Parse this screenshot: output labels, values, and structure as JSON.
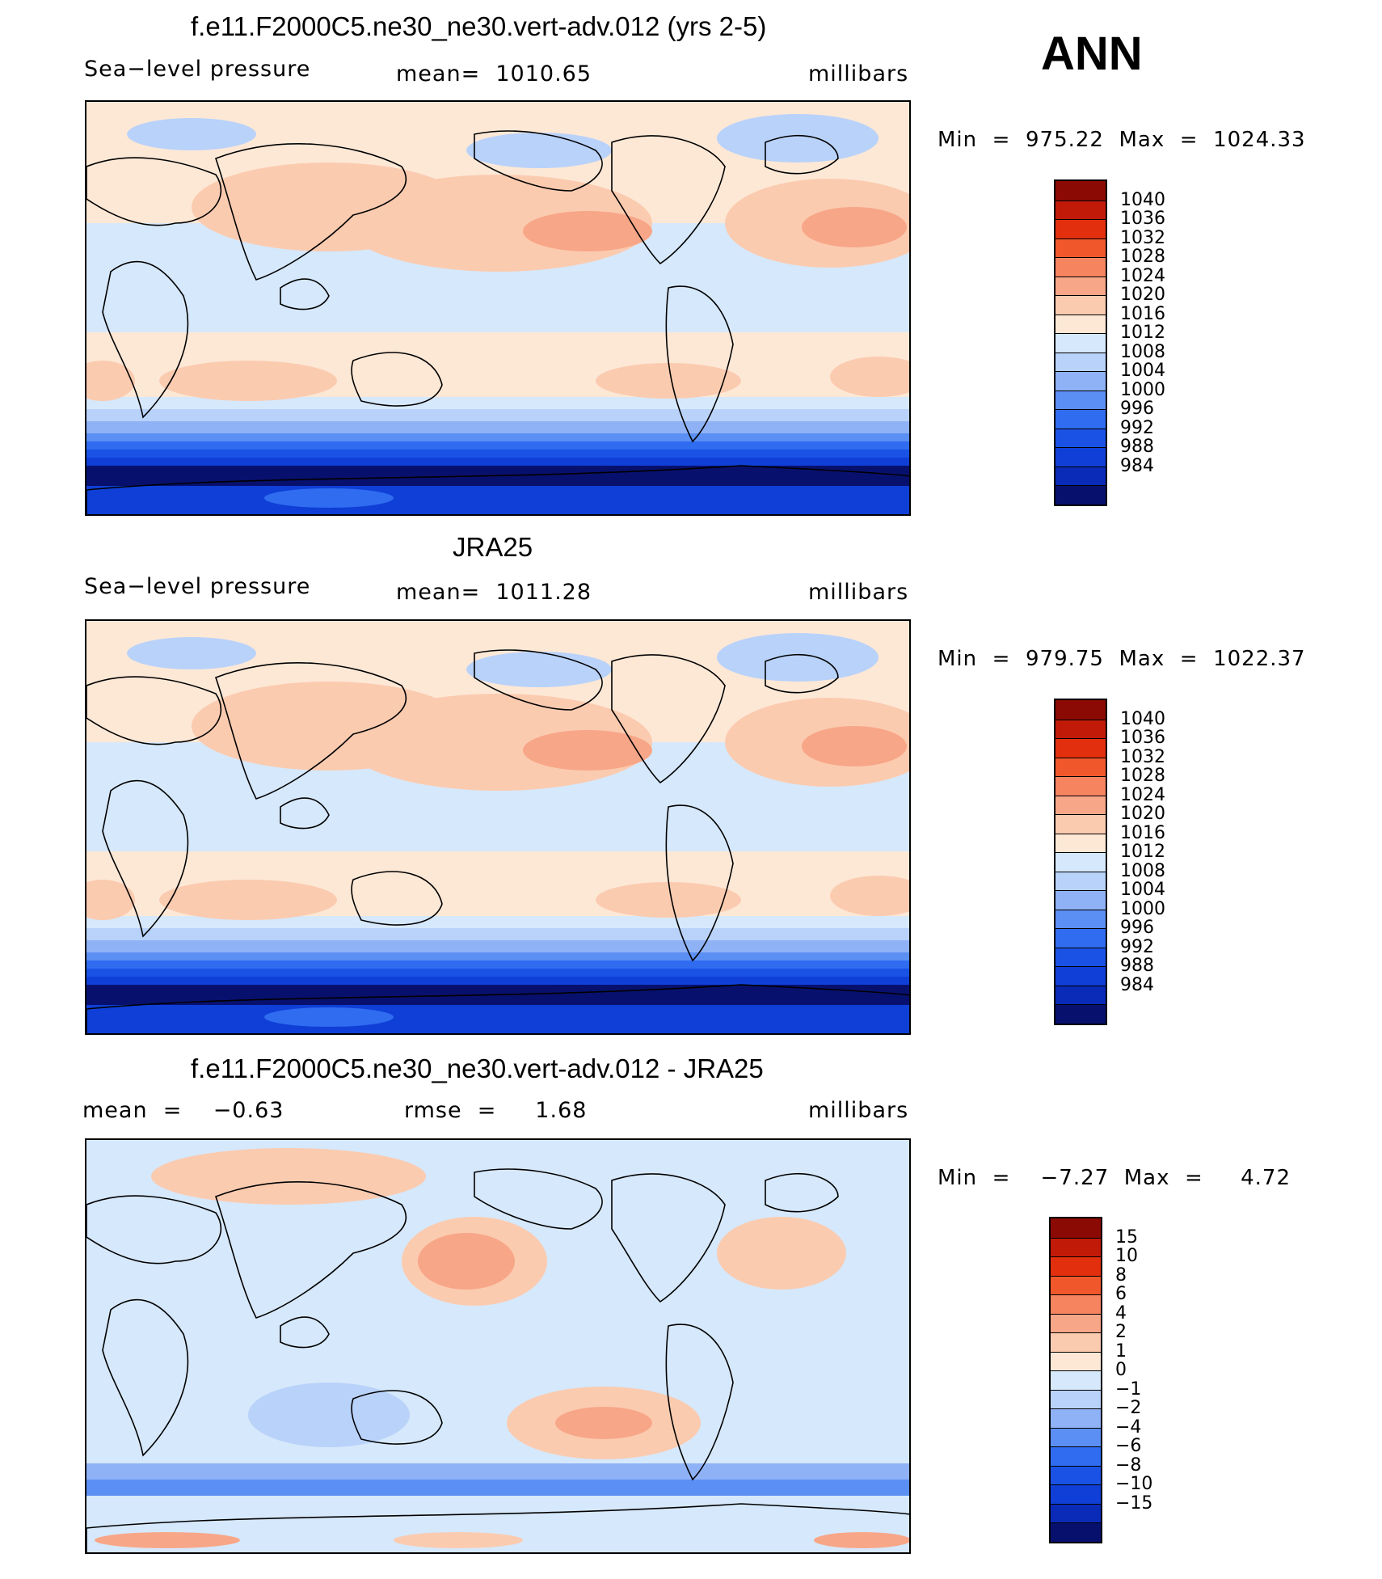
{
  "season": "ANN",
  "colors": {
    "slp": [
      "#08106e",
      "#0a2ab8",
      "#0f3fd6",
      "#1a52e6",
      "#2f6cf0",
      "#5c8ff4",
      "#8fb2f7",
      "#b9d2fa",
      "#d6e8fb",
      "#fde8d6",
      "#fbcbb0",
      "#f8a688",
      "#f6845f",
      "#f0582c",
      "#e2300e",
      "#c21a09",
      "#8b0a04"
    ],
    "diff": [
      "#08106e",
      "#0a2ab8",
      "#0f3fd6",
      "#1a52e6",
      "#2f6cf0",
      "#5c8ff4",
      "#8fb2f7",
      "#b9d2fa",
      "#d6e8fb",
      "#fde8d6",
      "#fbcbb0",
      "#f8a688",
      "#f6845f",
      "#f0582c",
      "#e2300e",
      "#c21a09",
      "#8b0a04"
    ]
  },
  "panels": [
    {
      "title": "f.e11.F2000C5.ne30_ne30.vert-adv.012 (yrs 2-5)",
      "left": "Sea−level pressure",
      "center": "mean=  1010.65",
      "right": "millibars",
      "minmax": "Min  =  975.22  Max  =  1024.33",
      "levels": [
        "1040",
        "1036",
        "1032",
        "1028",
        "1024",
        "1020",
        "1016",
        "1012",
        "1008",
        "1004",
        "1000",
        "996",
        "992",
        "988",
        "984"
      ]
    },
    {
      "title": "JRA25",
      "left": "Sea−level pressure",
      "center": "mean=  1011.28",
      "right": "millibars",
      "minmax": "Min  =  979.75  Max  =  1022.37",
      "levels": [
        "1040",
        "1036",
        "1032",
        "1028",
        "1024",
        "1020",
        "1016",
        "1012",
        "1008",
        "1004",
        "1000",
        "996",
        "992",
        "988",
        "984"
      ]
    },
    {
      "title": "f.e11.F2000C5.ne30_ne30.vert-adv.012 - JRA25",
      "left": "mean  =    −0.63",
      "center": "rmse  =     1.68",
      "right": "millibars",
      "minmax": "Min  =    −7.27  Max  =     4.72",
      "levels": [
        "15",
        "10",
        "8",
        "6",
        "4",
        "2",
        "1",
        "0",
        "−1",
        "−2",
        "−4",
        "−6",
        "−8",
        "−10",
        "−15"
      ]
    }
  ]
}
